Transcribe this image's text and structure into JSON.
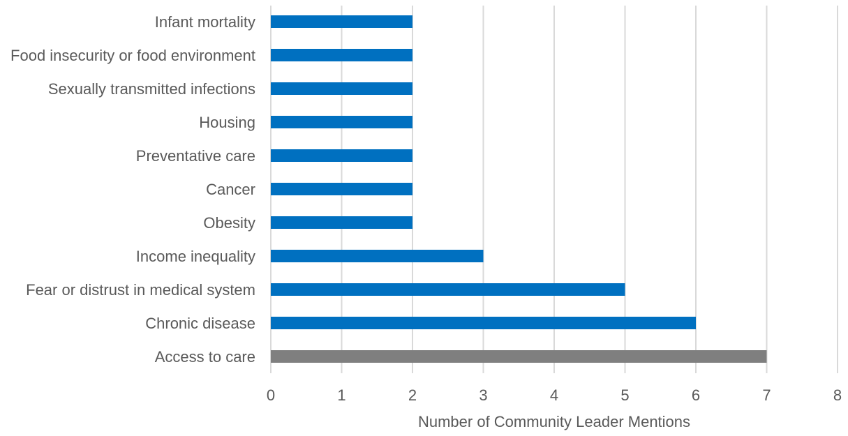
{
  "chart_data": {
    "type": "bar",
    "orientation": "horizontal",
    "title": "",
    "xlabel": "Number of Community Leader Mentions",
    "ylabel": "",
    "xlim": [
      0,
      8
    ],
    "x_ticks": [
      "0",
      "1",
      "2",
      "3",
      "4",
      "5",
      "6",
      "7",
      "8"
    ],
    "grid": "vertical gridlines on",
    "legend": "none",
    "categories": [
      "Infant mortality",
      "Food insecurity or food environment",
      "Sexually transmitted infections",
      "Housing",
      "Preventative care",
      "Cancer",
      "Obesity",
      "Income inequality",
      "Fear or distrust in medical system",
      "Chronic disease",
      "Access to care"
    ],
    "values": [
      2,
      2,
      2,
      2,
      2,
      2,
      2,
      3,
      5,
      6,
      7
    ],
    "bar_colors": [
      "#0070c0",
      "#0070c0",
      "#0070c0",
      "#0070c0",
      "#0070c0",
      "#0070c0",
      "#0070c0",
      "#0070c0",
      "#0070c0",
      "#0070c0",
      "#7f7f7f"
    ],
    "colors": {
      "primary": "#0070c0",
      "highlight": "#7f7f7f",
      "grid": "#d9d9d9",
      "text": "#595959"
    }
  }
}
